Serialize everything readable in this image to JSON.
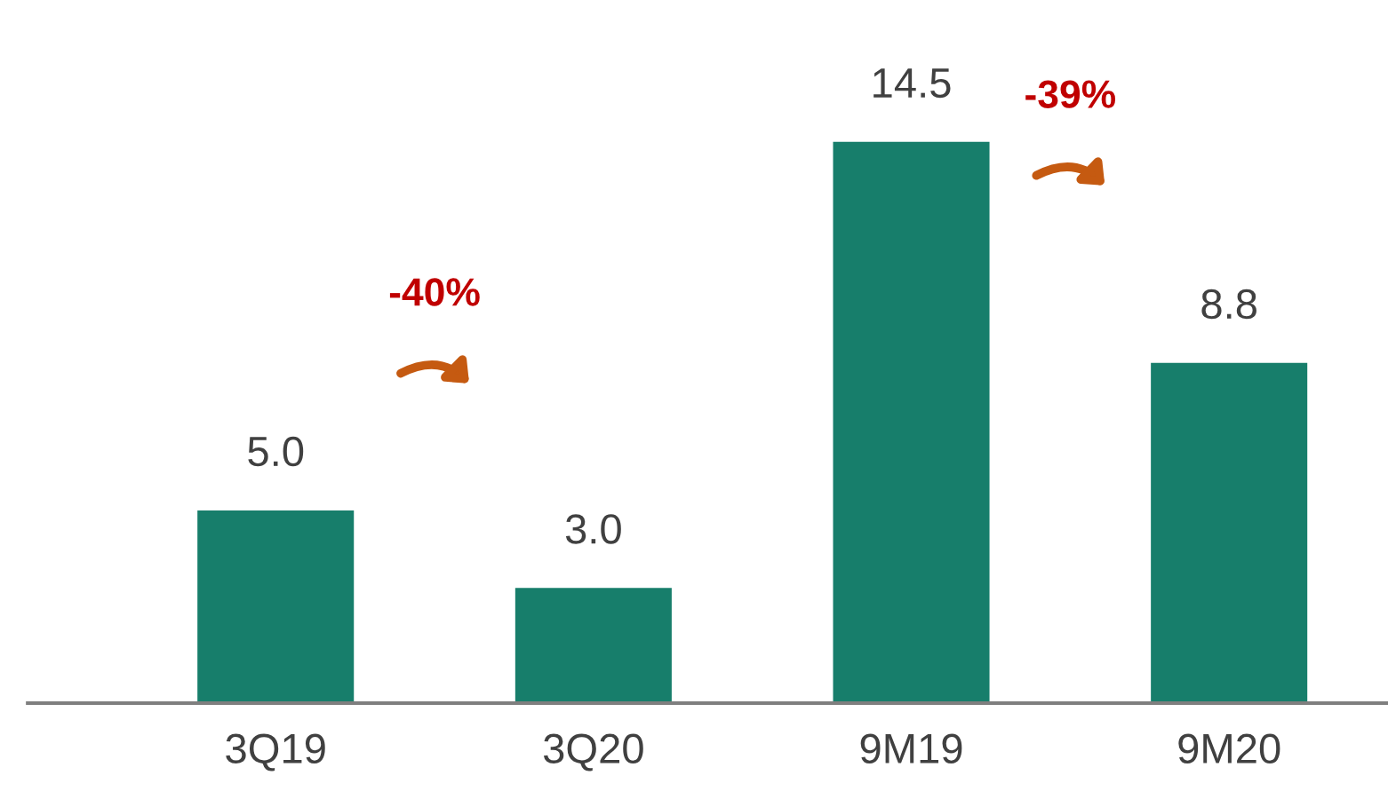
{
  "chart_data": {
    "type": "bar",
    "categories": [
      "3Q19",
      "3Q20",
      "9M19",
      "9M20"
    ],
    "values": [
      5.0,
      3.0,
      14.5,
      8.8
    ],
    "color": "#177e6b",
    "value_labels": [
      "5.0",
      "3.0",
      "14.5",
      "8.8"
    ],
    "annotations": [
      "-40%",
      "-39%"
    ]
  }
}
